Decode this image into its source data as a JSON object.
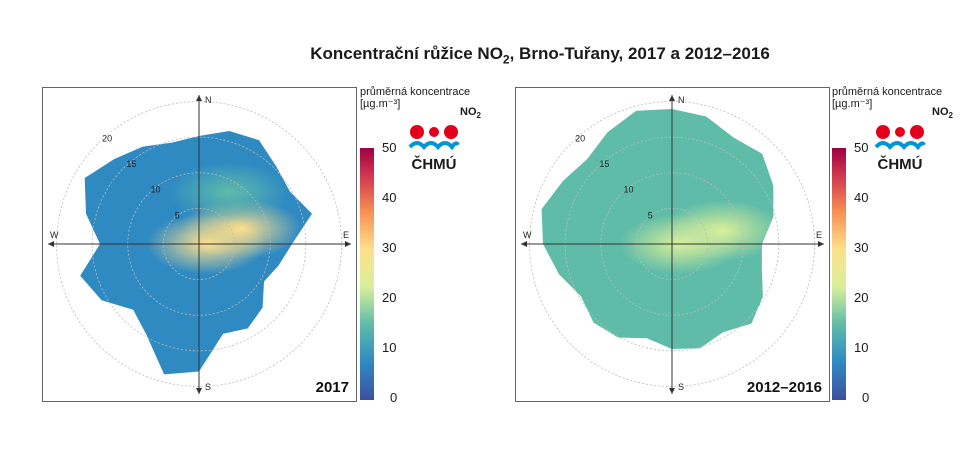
{
  "title": {
    "main": "Koncentrační růžice NO",
    "sub": "2",
    "rest": ", Brno-Tuřany, 2017 a 2012–2016"
  },
  "legend": {
    "line1": "průměrná koncentrace",
    "line2": "[µg.m⁻³]",
    "pollutant": "NO",
    "pollutant_sub": "2",
    "logo_text": "ČHMÚ",
    "colorbar_ticks": [
      "50",
      "40",
      "30",
      "20",
      "10",
      "0"
    ]
  },
  "chart_data": [
    {
      "type": "heatmap",
      "subtype": "polar-concentration-rose",
      "label": "2017",
      "directions": [
        "N",
        "E",
        "S",
        "W"
      ],
      "radial_ticks": [
        "5",
        "10",
        "15",
        "20"
      ],
      "radial_unit": "wind speed rings",
      "color_scale": {
        "min": 0,
        "max": 50,
        "colors": [
          "#3d4fa0",
          "#2f8ac2",
          "#5fbca8",
          "#d9ef9b",
          "#fee08b",
          "#f58e52",
          "#d43d4f",
          "#9e0142"
        ]
      },
      "hotspots": [
        {
          "direction_deg": 70,
          "speed": 6,
          "value": 27
        },
        {
          "direction_deg": 90,
          "speed": 1,
          "value": 25
        },
        {
          "direction_deg": 30,
          "speed": 8,
          "value": 15
        }
      ],
      "background_value": 8
    },
    {
      "type": "heatmap",
      "subtype": "polar-concentration-rose",
      "label": "2012–2016",
      "directions": [
        "N",
        "E",
        "S",
        "W"
      ],
      "radial_ticks": [
        "5",
        "10",
        "15",
        "20"
      ],
      "radial_unit": "wind speed rings",
      "color_scale": {
        "min": 0,
        "max": 50,
        "colors": [
          "#3d4fa0",
          "#2f8ac2",
          "#5fbca8",
          "#d9ef9b",
          "#fee08b",
          "#f58e52",
          "#d43d4f",
          "#9e0142"
        ]
      },
      "hotspots": [
        {
          "direction_deg": 75,
          "speed": 7,
          "value": 24
        },
        {
          "direction_deg": 90,
          "speed": 1,
          "value": 23
        },
        {
          "direction_deg": 20,
          "speed": 12,
          "value": 14
        }
      ],
      "background_value": 11
    }
  ]
}
